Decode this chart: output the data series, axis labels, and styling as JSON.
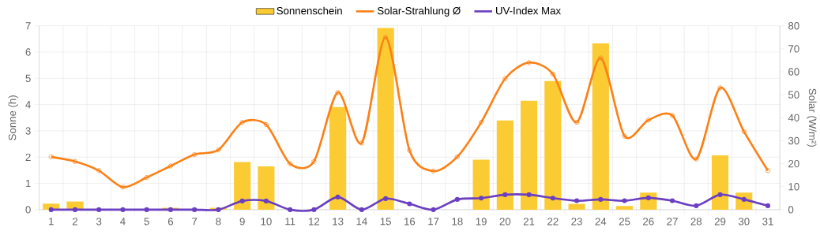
{
  "chart_data": {
    "type": "bar",
    "categories": [
      "1",
      "2",
      "3",
      "4",
      "5",
      "6",
      "7",
      "8",
      "9",
      "10",
      "11",
      "12",
      "13",
      "14",
      "15",
      "16",
      "17",
      "18",
      "19",
      "20",
      "21",
      "22",
      "23",
      "24",
      "25",
      "26",
      "27",
      "28",
      "29",
      "30",
      "31"
    ],
    "ylabel": "Sonne (h)",
    "y2label": "Solar (W/m²)",
    "ylim": [
      0,
      7
    ],
    "yticks": [
      0,
      1,
      2,
      3,
      4,
      5,
      6,
      7
    ],
    "y2lim": [
      0,
      80
    ],
    "y2ticks": [
      0,
      10,
      20,
      30,
      40,
      50,
      60,
      70,
      80
    ],
    "grid": true,
    "legend": "top",
    "marker": "circle",
    "series": [
      {
        "name": "Sonnenschein",
        "color": "#fbcb34",
        "values": [
          0.23,
          0.31,
          0,
          0,
          0,
          0.07,
          0,
          0.07,
          1.81,
          1.65,
          0,
          0,
          3.91,
          0,
          6.92,
          0,
          0,
          0,
          1.9,
          3.4,
          4.15,
          4.9,
          0.22,
          6.33,
          0.14,
          0.65,
          0,
          0,
          2.07,
          0.65,
          0
        ]
      },
      {
        "name": "Solar-Strahlung Ø",
        "type": "line",
        "axis": "y2",
        "color": "#fb8117",
        "values": [
          23,
          21,
          17,
          9.8,
          14,
          19,
          24,
          26,
          38,
          37,
          20,
          21,
          51,
          29,
          75,
          25.8,
          16.8,
          23,
          38,
          57,
          64,
          59,
          38,
          66,
          32,
          39,
          41,
          22,
          53,
          34,
          17
        ]
      },
      {
        "name": "UV-Index Max",
        "type": "line",
        "axis": "y",
        "color": "#6a3fc1",
        "values": [
          0,
          0,
          0,
          0,
          0,
          0,
          0,
          0,
          0.33,
          0.33,
          0,
          0,
          0.48,
          0,
          0.42,
          0.22,
          0,
          0.39,
          0.44,
          0.57,
          0.57,
          0.44,
          0.34,
          0.39,
          0.34,
          0.45,
          0.34,
          0.15,
          0.57,
          0.39,
          0.15
        ]
      }
    ]
  }
}
